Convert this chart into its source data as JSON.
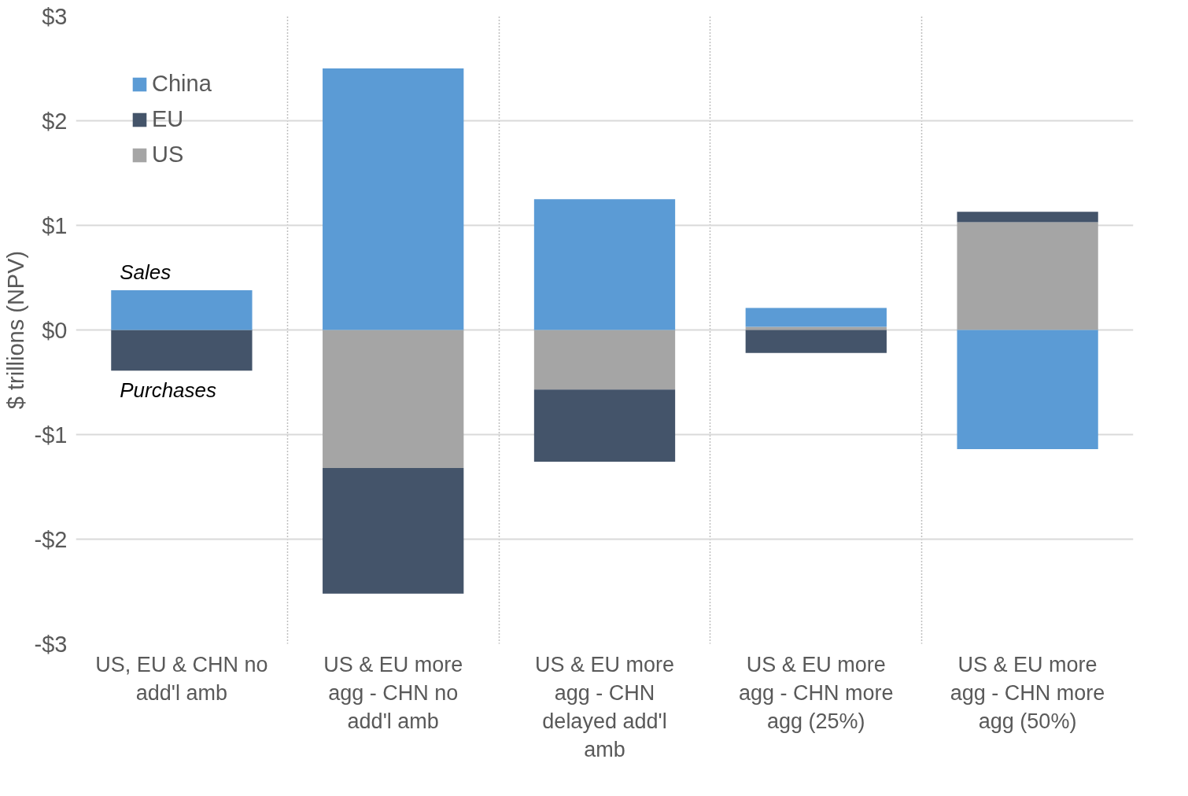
{
  "chart_data": {
    "type": "bar",
    "stacked": true,
    "ylabel": "$ trillions (NPV)",
    "categories": [
      "US, EU & CHN no add'l amb",
      "US & EU more agg - CHN no add'l amb",
      "US & EU more agg - CHN delayed add'l amb",
      "US & EU more agg - CHN more agg (25%)",
      "US & EU more agg - CHN more agg (50%)"
    ],
    "series": [
      {
        "name": "US",
        "color": "#a5a5a5",
        "values": [
          null,
          -1.32,
          -0.57,
          0.03,
          1.03
        ]
      },
      {
        "name": "EU",
        "color": "#44546a",
        "values": [
          -0.39,
          -1.2,
          -0.69,
          -0.22,
          0.1
        ]
      },
      {
        "name": "China",
        "color": "#5b9bd5",
        "values": [
          0.38,
          2.5,
          1.25,
          0.18,
          -1.14
        ]
      }
    ],
    "ylim": [
      -3,
      3
    ],
    "yticks": [
      {
        "value": -3,
        "label": "-$3"
      },
      {
        "value": -2,
        "label": "-$2"
      },
      {
        "value": -1,
        "label": "-$1"
      },
      {
        "value": 0,
        "label": "$0"
      },
      {
        "value": 1,
        "label": "$1"
      },
      {
        "value": 2,
        "label": "$2"
      },
      {
        "value": 3,
        "label": "$3"
      }
    ],
    "grid": true,
    "legend": "top left",
    "annotations": [
      {
        "text": "Sales",
        "x": "US, EU & CHN no add'l amb",
        "y": 0.38
      },
      {
        "text": "Purchases",
        "x": "US, EU & CHN no add'l amb",
        "y": -0.39
      }
    ]
  }
}
